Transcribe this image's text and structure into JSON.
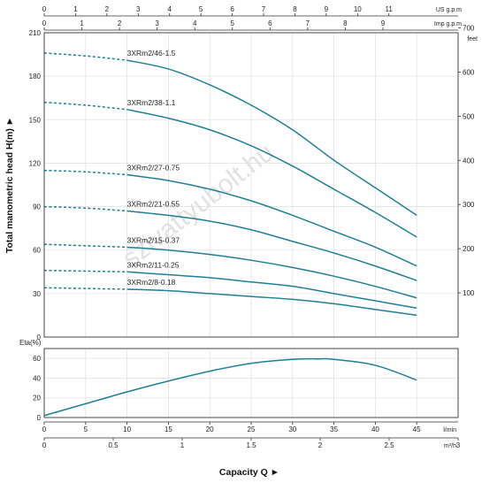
{
  "chart_data": [
    {
      "type": "line",
      "ylabel": "Total manometric head H(m)",
      "ylabel_arrow": "►",
      "ylim": [
        0,
        210
      ],
      "yticks": [
        0,
        30,
        60,
        90,
        120,
        150,
        180,
        210
      ],
      "xlim": [
        0,
        50
      ],
      "right_axis": {
        "label": "feet",
        "ticks": [
          100,
          200,
          300,
          400,
          500,
          600,
          700
        ]
      },
      "top_axes": [
        {
          "label": "US g.p.m",
          "ticks": [
            0,
            1,
            2,
            3,
            4,
            5,
            6,
            7,
            8,
            9,
            10,
            11
          ]
        },
        {
          "label": "Imp g.p.m",
          "ticks": [
            0,
            1,
            2,
            3,
            4,
            5,
            6,
            7,
            8,
            9
          ]
        }
      ],
      "watermark": "szivattyubolt.hu",
      "dashed_until_x": 10,
      "series": [
        {
          "name": "3XRm2/46-1.5",
          "x": [
            0,
            5,
            10,
            15,
            20,
            25,
            30,
            35,
            40,
            45
          ],
          "y": [
            196,
            194,
            191,
            185,
            174,
            160,
            143,
            122,
            103,
            84
          ]
        },
        {
          "name": "3XRm2/38-1.1",
          "x": [
            0,
            5,
            10,
            15,
            20,
            25,
            30,
            35,
            40,
            45
          ],
          "y": [
            162,
            160,
            157,
            151,
            143,
            132,
            118,
            102,
            86,
            69
          ]
        },
        {
          "name": "3XRm2/27-0.75",
          "x": [
            0,
            5,
            10,
            15,
            20,
            25,
            30,
            35,
            40,
            45
          ],
          "y": [
            115,
            114,
            112,
            108,
            102,
            94,
            84,
            73,
            62,
            49
          ]
        },
        {
          "name": "3XRm2/21-0.55",
          "x": [
            0,
            5,
            10,
            15,
            20,
            25,
            30,
            35,
            40,
            45
          ],
          "y": [
            90,
            89,
            87,
            84,
            80,
            74,
            66,
            58,
            49,
            39
          ]
        },
        {
          "name": "3XRm2/15-0.37",
          "x": [
            0,
            5,
            10,
            15,
            20,
            25,
            30,
            35,
            40,
            45
          ],
          "y": [
            64,
            63,
            62,
            60,
            57,
            53,
            48,
            42,
            35,
            27
          ]
        },
        {
          "name": "3XRm2/11-0.25",
          "x": [
            0,
            5,
            10,
            15,
            20,
            25,
            30,
            35,
            40,
            45
          ],
          "y": [
            46,
            45.5,
            45,
            43,
            41,
            38,
            35,
            30,
            25,
            20
          ]
        },
        {
          "name": "3XRm2/8-0.18",
          "x": [
            0,
            5,
            10,
            15,
            20,
            25,
            30,
            35,
            40,
            45
          ],
          "y": [
            34,
            33.5,
            33,
            32,
            30,
            28,
            26,
            23,
            19,
            15
          ]
        }
      ]
    },
    {
      "type": "line",
      "ylabel": "Eta(%)",
      "ylim": [
        0,
        70
      ],
      "yticks": [
        0,
        20,
        40,
        60
      ],
      "xlabel": "Capacity Q",
      "xlabel_arrow": "►",
      "xlim": [
        0,
        50
      ],
      "x_lmin": {
        "unit": "l/min",
        "ticks": [
          0,
          5,
          10,
          15,
          20,
          25,
          30,
          35,
          40,
          45
        ]
      },
      "x_m3h": {
        "unit": "m³/h",
        "ticks": [
          "0",
          "0.5",
          "1",
          "1.5",
          "2",
          "2.5",
          "3"
        ]
      },
      "series": [
        {
          "x": [
            0,
            5,
            10,
            15,
            20,
            25,
            30,
            33,
            35,
            40,
            45
          ],
          "y": [
            2,
            14,
            26,
            37,
            47,
            55,
            59,
            59.5,
            59,
            53,
            38
          ]
        }
      ]
    }
  ]
}
